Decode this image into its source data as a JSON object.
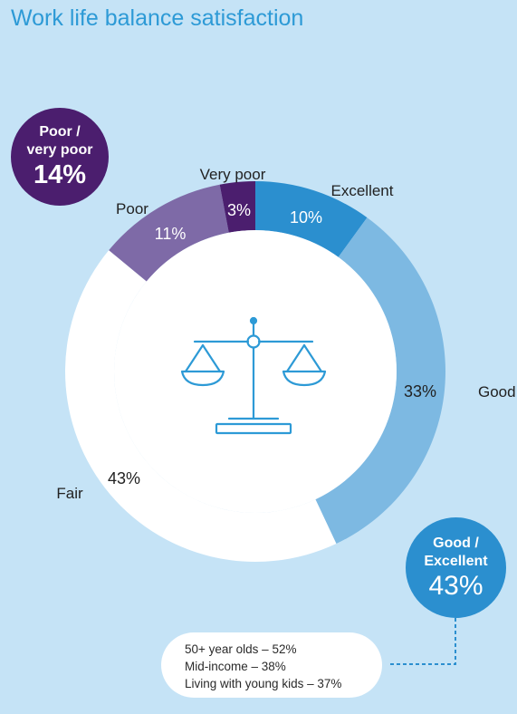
{
  "title": "Work life balance satisfaction",
  "chart_data": {
    "type": "donut",
    "title": "Work life balance satisfaction",
    "categories": [
      "Excellent",
      "Good",
      "Fair",
      "Poor",
      "Very poor"
    ],
    "values": [
      10,
      33,
      43,
      11,
      3
    ],
    "labels": [
      "10%",
      "33%",
      "43%",
      "11%",
      "3%"
    ],
    "colors": [
      "#2b8fcf",
      "#7db9e2",
      "#ffffff",
      "#7e6aa7",
      "#4b1e6e"
    ],
    "center_icon": "balance-scale-icon"
  },
  "callouts": {
    "poor": {
      "line1": "Poor /",
      "line2": "very poor",
      "value": "14%"
    },
    "good": {
      "line1": "Good /",
      "line2": "Excellent",
      "value": "43%"
    }
  },
  "note": {
    "items": [
      "50+ year olds – 52%",
      "Mid-income – 38%",
      "Living with young kids – 37%"
    ]
  }
}
